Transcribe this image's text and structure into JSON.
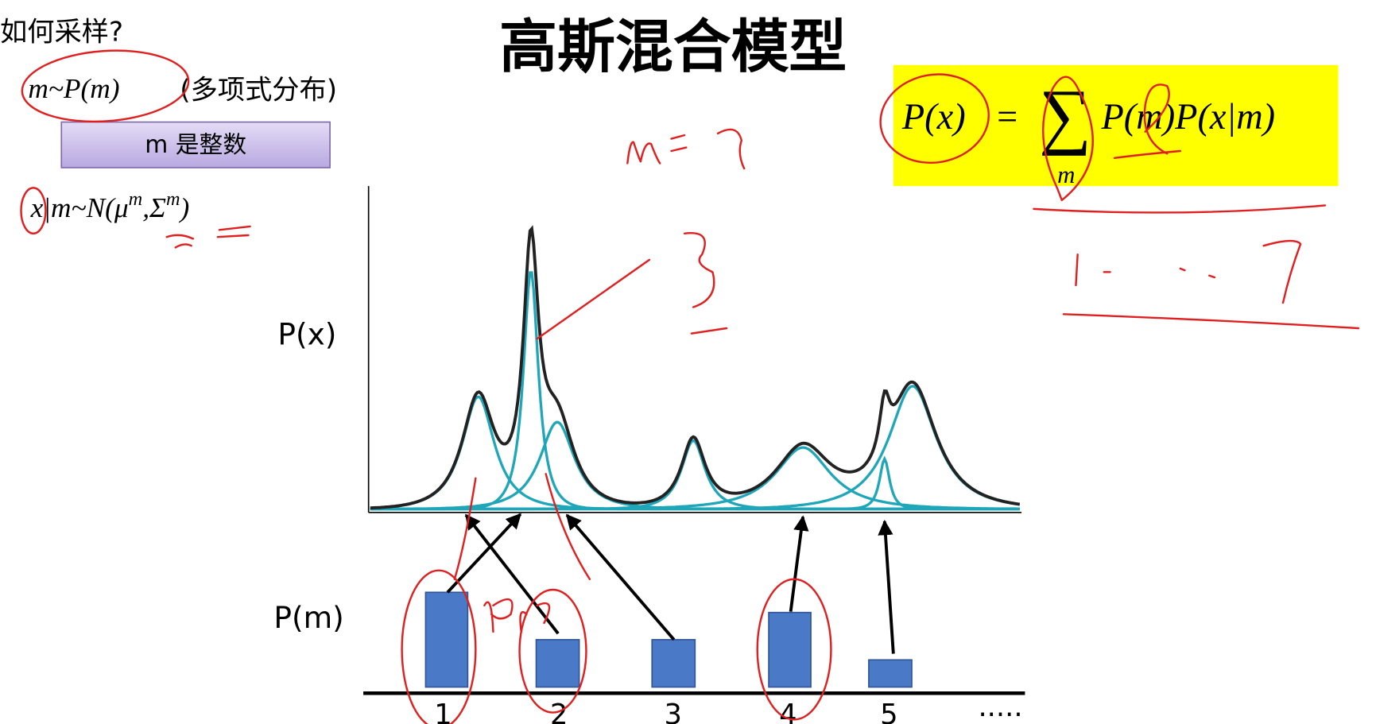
{
  "header": {
    "title": "高斯混合模型"
  },
  "left_panel": {
    "question": "如何采样?",
    "prior": {
      "formula": "m~P(m)",
      "note": "(多项式分布)"
    },
    "integer_box": "m 是整数",
    "conditional": {
      "base": "x|m~N(μ",
      "sup1": "m",
      "mid": ",Σ",
      "sup2": "m",
      "end": ")"
    }
  },
  "formula_box": {
    "lhs": "P(x)",
    "eq": "=",
    "sum": "∑",
    "sum_sub": "m",
    "rhs": "P(m)P(x|m)"
  },
  "figure": {
    "px_label": "P(x)",
    "pm_label": "P(m)",
    "bar_labels": [
      "1",
      "2",
      "3",
      "4",
      "5",
      "·····"
    ]
  }
}
